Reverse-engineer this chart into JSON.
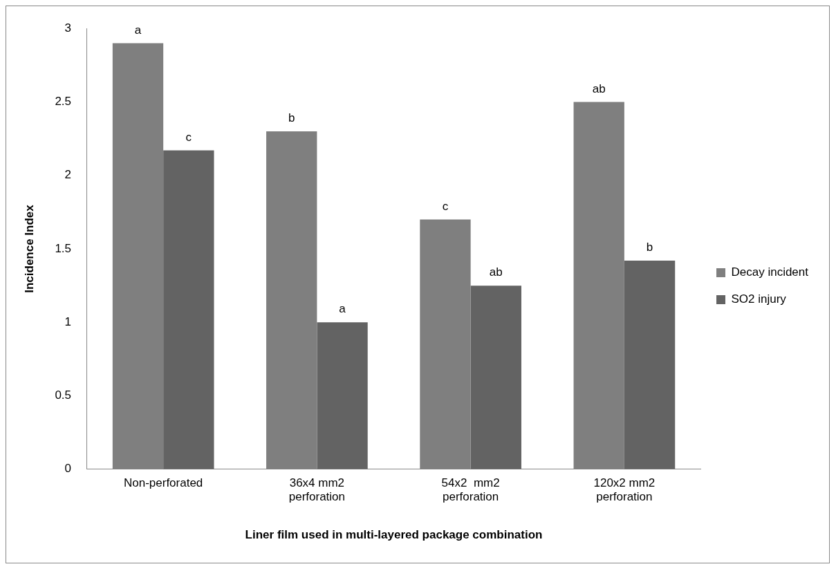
{
  "chart_data": {
    "type": "bar",
    "xlabel": "Liner film used in multi-layered package combination",
    "ylabel": "Incidence Index",
    "categories": [
      "Non-perforated",
      "36x4 mm2\nperforation",
      "54x2  mm2\nperforation",
      "120x2 mm2\nperforation"
    ],
    "series": [
      {
        "name": "Decay incident",
        "color": "#7f7f7f",
        "values": [
          2.9,
          2.3,
          1.7,
          2.5
        ],
        "value_labels": [
          "a",
          "b",
          "c",
          "ab"
        ]
      },
      {
        "name": "SO2 injury",
        "color": "#636363",
        "values": [
          2.17,
          1.0,
          1.25,
          1.42
        ],
        "value_labels": [
          "c",
          "a",
          "ab",
          "b"
        ]
      }
    ],
    "ylim": [
      0,
      3
    ],
    "yticks": [
      0,
      0.5,
      1,
      1.5,
      2,
      2.5,
      3
    ],
    "grid": false,
    "legend": "right"
  }
}
